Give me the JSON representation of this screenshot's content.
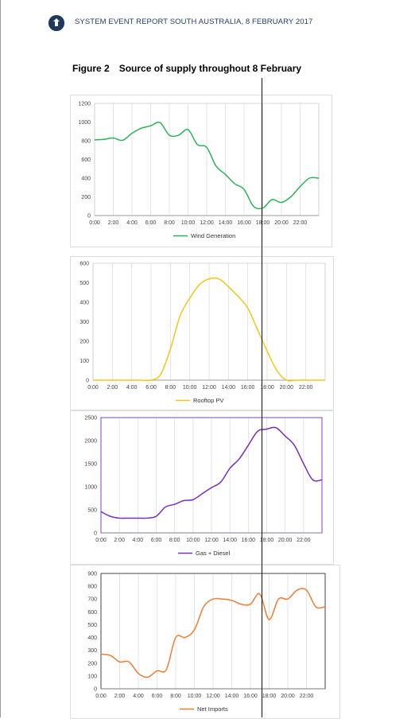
{
  "header": {
    "report_title": "SYSTEM EVENT REPORT SOUTH AUSTRALIA, 8 FEBRUARY 2017",
    "figure_label": "Figure 2",
    "figure_title": "Source of supply throughout 8 February"
  },
  "chart_data": [
    {
      "type": "line",
      "x": [
        "0:00",
        "1:00",
        "2:00",
        "3:00",
        "4:00",
        "5:00",
        "6:00",
        "7:00",
        "8:00",
        "9:00",
        "10:00",
        "11:00",
        "12:00",
        "13:00",
        "14:00",
        "15:00",
        "16:00",
        "17:00",
        "18:00",
        "19:00",
        "20:00",
        "21:00",
        "22:00",
        "23:00",
        "24:00"
      ],
      "xticks": [
        "0:00",
        "2:00",
        "4:00",
        "6:00",
        "8:00",
        "10:00",
        "12:00",
        "14:00",
        "16:00",
        "18:00",
        "20:00",
        "22:00"
      ],
      "series": [
        {
          "name": "Wind Generation",
          "color": "#2ab45a",
          "values": [
            810,
            815,
            830,
            805,
            880,
            935,
            960,
            995,
            860,
            860,
            920,
            760,
            730,
            530,
            440,
            340,
            280,
            100,
            80,
            170,
            140,
            200,
            310,
            400,
            400
          ]
        }
      ],
      "ylim": [
        0,
        1200
      ],
      "yticks": [
        "0",
        "200",
        "400",
        "600",
        "800",
        "1000",
        "1200"
      ],
      "legend": "bottom"
    },
    {
      "type": "line",
      "x": [
        "0:00",
        "1:00",
        "2:00",
        "3:00",
        "4:00",
        "5:00",
        "6:00",
        "7:00",
        "8:00",
        "9:00",
        "10:00",
        "11:00",
        "12:00",
        "13:00",
        "14:00",
        "15:00",
        "16:00",
        "17:00",
        "18:00",
        "19:00",
        "20:00",
        "21:00",
        "22:00",
        "23:00",
        "24:00"
      ],
      "xticks": [
        "0:00",
        "2:00",
        "4:00",
        "6:00",
        "8:00",
        "10:00",
        "12:00",
        "14:00",
        "16:00",
        "18:00",
        "20:00",
        "22:00"
      ],
      "series": [
        {
          "name": "Rooftop PV",
          "color": "#f5c518",
          "values": [
            0,
            0,
            0,
            0,
            0,
            0,
            0,
            30,
            160,
            330,
            420,
            490,
            520,
            520,
            480,
            430,
            370,
            260,
            150,
            50,
            0,
            0,
            0,
            0,
            0
          ]
        }
      ],
      "ylim": [
        0,
        600
      ],
      "yticks": [
        "0",
        "100",
        "200",
        "300",
        "400",
        "500",
        "600"
      ],
      "legend": "bottom"
    },
    {
      "type": "line",
      "x": [
        "0:00",
        "1:00",
        "2:00",
        "3:00",
        "4:00",
        "5:00",
        "6:00",
        "7:00",
        "8:00",
        "9:00",
        "10:00",
        "11:00",
        "12:00",
        "13:00",
        "14:00",
        "15:00",
        "16:00",
        "17:00",
        "18:00",
        "19:00",
        "20:00",
        "21:00",
        "22:00",
        "23:00",
        "24:00"
      ],
      "xticks": [
        "0:00",
        "2:00",
        "4:00",
        "6:00",
        "8:00",
        "10:00",
        "12:00",
        "14:00",
        "16:00",
        "18:00",
        "20:00",
        "22:00"
      ],
      "series": [
        {
          "name": "Gas + Diesel",
          "color": "#7b2fb5",
          "values": [
            460,
            360,
            320,
            320,
            320,
            320,
            360,
            560,
            620,
            700,
            720,
            850,
            980,
            1100,
            1400,
            1600,
            1900,
            2200,
            2250,
            2280,
            2100,
            1900,
            1500,
            1150,
            1150
          ]
        }
      ],
      "ylim": [
        0,
        2500
      ],
      "yticks": [
        "0",
        "500",
        "1000",
        "1500",
        "2000",
        "2500"
      ],
      "legend": "bottom"
    },
    {
      "type": "line",
      "x": [
        "0:00",
        "1:00",
        "2:00",
        "3:00",
        "4:00",
        "5:00",
        "6:00",
        "7:00",
        "8:00",
        "9:00",
        "10:00",
        "11:00",
        "12:00",
        "13:00",
        "14:00",
        "15:00",
        "16:00",
        "17:00",
        "18:00",
        "19:00",
        "20:00",
        "21:00",
        "22:00",
        "23:00",
        "24:00"
      ],
      "xticks": [
        "0:00",
        "2:00",
        "4:00",
        "6:00",
        "8:00",
        "10:00",
        "12:00",
        "14:00",
        "16:00",
        "18:00",
        "20:00",
        "22:00"
      ],
      "series": [
        {
          "name": "Net Imports",
          "color": "#ef7d32",
          "values": [
            270,
            260,
            210,
            210,
            120,
            90,
            140,
            150,
            400,
            400,
            460,
            640,
            700,
            700,
            690,
            660,
            660,
            740,
            540,
            700,
            700,
            770,
            770,
            640,
            640
          ]
        }
      ],
      "ylim": [
        0,
        900
      ],
      "yticks": [
        "0",
        "100",
        "200",
        "300",
        "400",
        "500",
        "600",
        "700",
        "800",
        "900"
      ],
      "legend": "bottom"
    }
  ]
}
